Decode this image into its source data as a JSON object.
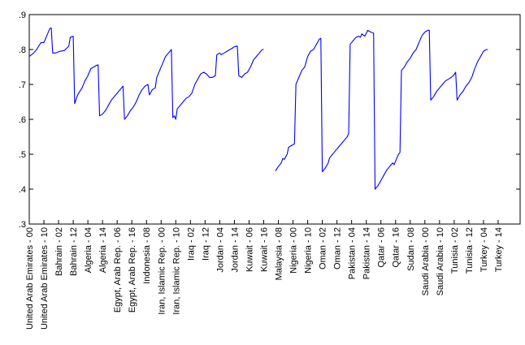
{
  "chart_data": {
    "type": "line",
    "title": "",
    "xlabel": "",
    "ylabel": "",
    "ylim": [
      0.3,
      0.9
    ],
    "y_ticks": [
      ".3",
      ".4",
      ".5",
      ".6",
      ".7",
      ".8",
      ".9"
    ],
    "y_tick_values": [
      0.3,
      0.4,
      0.5,
      0.6,
      0.7,
      0.8,
      0.9
    ],
    "grid": false,
    "legend": "none",
    "line_color": "#0000ff",
    "n_points": 336,
    "x_ticks": [
      {
        "index": 0,
        "label": "United Arab Emirates - 00"
      },
      {
        "index": 10,
        "label": "United Arab Emirates - 10"
      },
      {
        "index": 20,
        "label": "Bahrain - 02"
      },
      {
        "index": 30,
        "label": "Bahrain - 12"
      },
      {
        "index": 40,
        "label": "Algeria - 04"
      },
      {
        "index": 50,
        "label": "Algeria - 14"
      },
      {
        "index": 60,
        "label": "Egypt, Arab Rep. - 06"
      },
      {
        "index": 70,
        "label": "Egypt, Arab Rep. - 16"
      },
      {
        "index": 80,
        "label": "Indonesia - 08"
      },
      {
        "index": 90,
        "label": "Iran, Islamic Rep. - 00"
      },
      {
        "index": 100,
        "label": "Iran, Islamic Rep. - 10"
      },
      {
        "index": 110,
        "label": "Iraq - 02"
      },
      {
        "index": 120,
        "label": "Iraq - 12"
      },
      {
        "index": 130,
        "label": "Jordan - 04"
      },
      {
        "index": 140,
        "label": "Jordan - 14"
      },
      {
        "index": 150,
        "label": "Kuwait - 06"
      },
      {
        "index": 160,
        "label": "Kuwait - 16"
      },
      {
        "index": 170,
        "label": "Malaysia - 08"
      },
      {
        "index": 180,
        "label": "Nigeria - 00"
      },
      {
        "index": 190,
        "label": "Nigeria - 10"
      },
      {
        "index": 200,
        "label": "Oman - 02"
      },
      {
        "index": 210,
        "label": "Oman - 12"
      },
      {
        "index": 220,
        "label": "Pakistan - 04"
      },
      {
        "index": 230,
        "label": "Pakistan - 14"
      },
      {
        "index": 240,
        "label": "Qatar - 06"
      },
      {
        "index": 250,
        "label": "Qatar - 16"
      },
      {
        "index": 260,
        "label": "Sudan - 08"
      },
      {
        "index": 270,
        "label": "Saudi Arabia - 00"
      },
      {
        "index": 280,
        "label": "Saudi Arabia - 10"
      },
      {
        "index": 290,
        "label": "Tunisia - 02"
      },
      {
        "index": 300,
        "label": "Tunisia - 12"
      },
      {
        "index": 310,
        "label": "Turkey - 04"
      },
      {
        "index": 320,
        "label": "Turkey - 14"
      }
    ],
    "series": [
      {
        "segments": [
          {
            "points": [
              [
                0,
                0.78
              ],
              [
                3,
                0.79
              ],
              [
                5,
                0.8
              ],
              [
                8,
                0.82
              ],
              [
                10,
                0.82
              ],
              [
                12,
                0.84
              ],
              [
                14,
                0.86
              ],
              [
                15,
                0.862
              ],
              [
                16,
                0.79
              ],
              [
                18,
                0.79
              ],
              [
                21,
                0.795
              ],
              [
                24,
                0.797
              ],
              [
                27,
                0.81
              ],
              [
                28,
                0.835
              ],
              [
                30,
                0.838
              ],
              [
                31,
                0.645
              ],
              [
                33,
                0.67
              ],
              [
                36,
                0.69
              ],
              [
                38,
                0.71
              ],
              [
                40,
                0.725
              ],
              [
                42,
                0.745
              ],
              [
                44,
                0.75
              ],
              [
                46,
                0.755
              ],
              [
                47,
                0.756
              ],
              [
                48,
                0.61
              ],
              [
                50,
                0.615
              ],
              [
                52,
                0.625
              ],
              [
                54,
                0.64
              ],
              [
                56,
                0.655
              ],
              [
                58,
                0.665
              ],
              [
                60,
                0.675
              ],
              [
                62,
                0.685
              ],
              [
                64,
                0.695
              ],
              [
                65,
                0.6
              ],
              [
                67,
                0.61
              ],
              [
                69,
                0.625
              ],
              [
                71,
                0.635
              ],
              [
                73,
                0.65
              ],
              [
                75,
                0.67
              ],
              [
                77,
                0.685
              ],
              [
                79,
                0.695
              ],
              [
                81,
                0.7
              ],
              [
                82,
                0.67
              ],
              [
                84,
                0.685
              ],
              [
                86,
                0.69
              ],
              [
                87,
                0.72
              ],
              [
                89,
                0.74
              ],
              [
                91,
                0.76
              ],
              [
                93,
                0.78
              ],
              [
                95,
                0.79
              ],
              [
                97,
                0.8
              ],
              [
                98,
                0.605
              ],
              [
                99,
                0.61
              ],
              [
                100,
                0.6
              ],
              [
                101,
                0.63
              ],
              [
                103,
                0.64
              ],
              [
                105,
                0.65
              ],
              [
                107,
                0.66
              ],
              [
                109,
                0.665
              ],
              [
                111,
                0.675
              ],
              [
                113,
                0.7
              ],
              [
                115,
                0.715
              ],
              [
                117,
                0.73
              ],
              [
                119,
                0.735
              ],
              [
                121,
                0.73
              ],
              [
                123,
                0.72
              ],
              [
                125,
                0.72
              ],
              [
                127,
                0.725
              ],
              [
                128,
                0.785
              ],
              [
                130,
                0.79
              ],
              [
                131,
                0.785
              ],
              [
                133,
                0.79
              ],
              [
                135,
                0.795
              ],
              [
                137,
                0.8
              ],
              [
                139,
                0.805
              ],
              [
                140,
                0.808
              ],
              [
                142,
                0.81
              ],
              [
                143,
                0.725
              ],
              [
                145,
                0.72
              ],
              [
                147,
                0.73
              ],
              [
                149,
                0.735
              ],
              [
                151,
                0.75
              ],
              [
                153,
                0.77
              ],
              [
                155,
                0.78
              ],
              [
                157,
                0.79
              ],
              [
                159,
                0.8
              ],
              [
                160,
                0.8
              ]
            ]
          },
          {
            "points": [
              [
                168,
                0.452
              ],
              [
                170,
                0.465
              ],
              [
                172,
                0.475
              ],
              [
                173,
                0.488
              ],
              [
                174,
                0.485
              ],
              [
                176,
                0.5
              ],
              [
                177,
                0.52
              ],
              [
                179,
                0.525
              ],
              [
                181,
                0.53
              ],
              [
                182,
                0.7
              ],
              [
                184,
                0.72
              ],
              [
                186,
                0.74
              ],
              [
                188,
                0.75
              ],
              [
                190,
                0.78
              ],
              [
                192,
                0.795
              ],
              [
                194,
                0.8
              ],
              [
                196,
                0.815
              ],
              [
                198,
                0.83
              ],
              [
                199,
                0.832
              ],
              [
                200,
                0.45
              ],
              [
                202,
                0.46
              ],
              [
                204,
                0.475
              ],
              [
                205,
                0.49
              ],
              [
                207,
                0.5
              ],
              [
                209,
                0.51
              ],
              [
                211,
                0.52
              ],
              [
                213,
                0.53
              ],
              [
                215,
                0.54
              ],
              [
                217,
                0.55
              ],
              [
                218,
                0.56
              ],
              [
                219,
                0.815
              ],
              [
                221,
                0.825
              ],
              [
                223,
                0.835
              ],
              [
                225,
                0.838
              ],
              [
                226,
                0.835
              ],
              [
                227,
                0.845
              ],
              [
                229,
                0.838
              ],
              [
                231,
                0.855
              ],
              [
                233,
                0.85
              ],
              [
                235,
                0.847
              ],
              [
                236,
                0.4
              ],
              [
                238,
                0.41
              ],
              [
                240,
                0.425
              ],
              [
                242,
                0.44
              ],
              [
                244,
                0.455
              ],
              [
                246,
                0.465
              ],
              [
                248,
                0.475
              ],
              [
                249,
                0.47
              ],
              [
                251,
                0.49
              ],
              [
                252,
                0.5
              ],
              [
                253,
                0.505
              ],
              [
                254,
                0.74
              ],
              [
                256,
                0.75
              ],
              [
                258,
                0.765
              ],
              [
                260,
                0.775
              ],
              [
                262,
                0.79
              ],
              [
                264,
                0.8
              ],
              [
                266,
                0.82
              ],
              [
                268,
                0.84
              ],
              [
                270,
                0.85
              ],
              [
                272,
                0.855
              ],
              [
                273,
                0.855
              ],
              [
                274,
                0.655
              ],
              [
                276,
                0.665
              ],
              [
                278,
                0.68
              ],
              [
                280,
                0.69
              ],
              [
                282,
                0.7
              ],
              [
                284,
                0.71
              ],
              [
                286,
                0.715
              ],
              [
                288,
                0.72
              ],
              [
                290,
                0.728
              ],
              [
                291,
                0.735
              ],
              [
                292,
                0.655
              ],
              [
                294,
                0.67
              ],
              [
                296,
                0.68
              ],
              [
                298,
                0.695
              ],
              [
                300,
                0.705
              ],
              [
                302,
                0.72
              ],
              [
                304,
                0.745
              ],
              [
                306,
                0.765
              ],
              [
                308,
                0.78
              ],
              [
                310,
                0.795
              ],
              [
                312,
                0.8
              ],
              [
                313,
                0.8
              ]
            ]
          }
        ]
      }
    ]
  }
}
